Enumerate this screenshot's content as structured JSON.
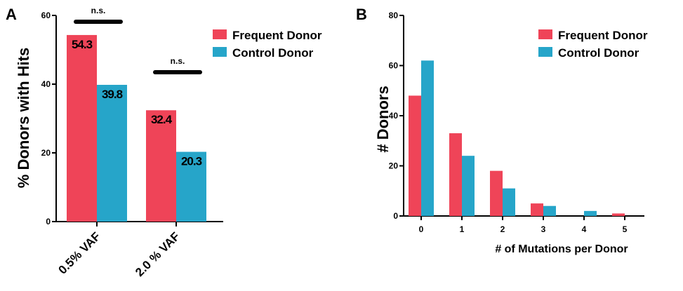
{
  "colors": {
    "frequent": "#ef4458",
    "control": "#26a5c9",
    "axis": "#000000"
  },
  "chart_data": [
    {
      "panel": "A",
      "type": "bar",
      "ylabel": "% Donors with Hits",
      "ylim": [
        0,
        60
      ],
      "yticks": [
        0,
        20,
        40,
        60
      ],
      "categories": [
        "0.5% VAF",
        "2.0 % VAF"
      ],
      "series": [
        {
          "name": "Frequent Donor",
          "values": [
            54.3,
            32.4
          ],
          "labels": [
            "54.3",
            "32.4"
          ]
        },
        {
          "name": "Control Donor",
          "values": [
            39.8,
            20.3
          ],
          "labels": [
            "39.8",
            "20.3"
          ]
        }
      ],
      "annotations": [
        "n.s.",
        "n.s."
      ],
      "legend": "top-right"
    },
    {
      "panel": "B",
      "type": "bar",
      "xlabel": "# of Mutations per Donor",
      "ylabel": "# Donors",
      "ylim": [
        0,
        80
      ],
      "yticks": [
        0,
        20,
        40,
        60,
        80
      ],
      "categories": [
        "0",
        "1",
        "2",
        "3",
        "4",
        "5"
      ],
      "series": [
        {
          "name": "Frequent Donor",
          "values": [
            48,
            33,
            18,
            5,
            0,
            1
          ]
        },
        {
          "name": "Control Donor",
          "values": [
            62,
            24,
            11,
            4,
            2,
            0
          ]
        }
      ],
      "legend": "top-right"
    }
  ]
}
